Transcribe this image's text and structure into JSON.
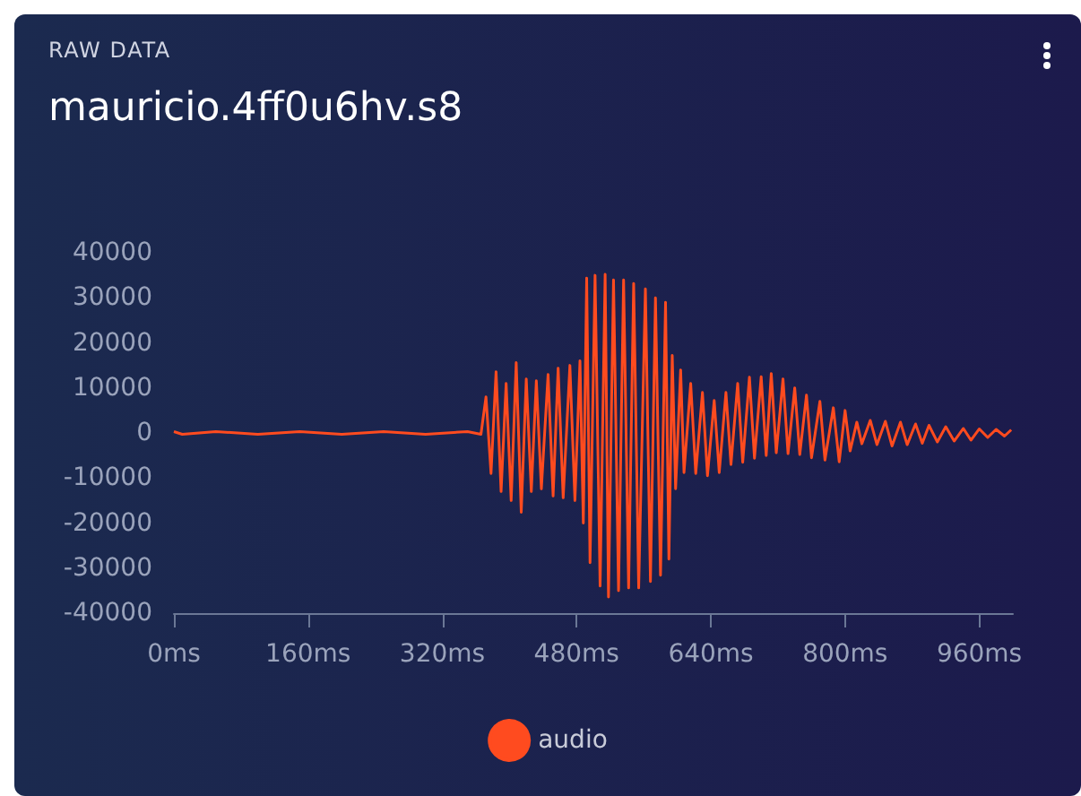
{
  "chart_data": {
    "type": "line",
    "subtitle": "RAW DATA",
    "title": "mauricio.4ff0u6hv.s8",
    "x": [
      0,
      10,
      50,
      100,
      150,
      200,
      250,
      300,
      350,
      366,
      372,
      378,
      384,
      390,
      396,
      402,
      408,
      414,
      420,
      426,
      432,
      438,
      446,
      452,
      458,
      464,
      472,
      478,
      484,
      488,
      492,
      496,
      502,
      508,
      514,
      518,
      524,
      530,
      536,
      542,
      548,
      554,
      562,
      568,
      574,
      580,
      586,
      590,
      594,
      598,
      604,
      608,
      616,
      622,
      630,
      636,
      644,
      650,
      658,
      664,
      672,
      678,
      686,
      692,
      700,
      706,
      712,
      718,
      726,
      732,
      740,
      746,
      754,
      760,
      770,
      776,
      786,
      793,
      800,
      806,
      814,
      820,
      830,
      838,
      848,
      856,
      866,
      874,
      884,
      892,
      900,
      910,
      920,
      930,
      941,
      950,
      960,
      970,
      980,
      990,
      998
    ],
    "series": [
      {
        "name": "audio",
        "color": "#ff4b1f",
        "values": [
          300,
          -300,
          300,
          -300,
          300,
          -300,
          300,
          -300,
          300,
          -300,
          8000,
          -9000,
          13600,
          -13000,
          11000,
          -15000,
          15600,
          -17600,
          12000,
          -13000,
          11600,
          -12400,
          13000,
          -14000,
          14400,
          -14400,
          15000,
          -15000,
          16000,
          -20000,
          34400,
          -28800,
          35000,
          -34000,
          35200,
          -36400,
          34000,
          -35000,
          34000,
          -34400,
          33200,
          -34400,
          32000,
          -33000,
          30000,
          -31600,
          29000,
          -28000,
          17200,
          -12400,
          14000,
          -8800,
          11000,
          -9000,
          9000,
          -9500,
          7200,
          -8800,
          9000,
          -7000,
          11000,
          -6500,
          12400,
          -5600,
          12500,
          -5000,
          13200,
          -4400,
          12000,
          -4600,
          10000,
          -4800,
          8400,
          -5500,
          7000,
          -6000,
          5600,
          -6400,
          5000,
          -4000,
          2400,
          -2400,
          2800,
          -2600,
          2600,
          -2900,
          2400,
          -2600,
          2000,
          -2300,
          1700,
          -2000,
          1400,
          -1800,
          1000,
          -1600,
          900,
          -1000,
          800,
          -700,
          700
        ]
      }
    ],
    "xlim": [
      0,
      1000
    ],
    "xticks": [
      {
        "value": 0,
        "label": "0ms"
      },
      {
        "value": 160,
        "label": "160ms"
      },
      {
        "value": 320,
        "label": "320ms"
      },
      {
        "value": 480,
        "label": "480ms"
      },
      {
        "value": 640,
        "label": "640ms"
      },
      {
        "value": 800,
        "label": "800ms"
      },
      {
        "value": 960,
        "label": "960ms"
      }
    ],
    "ylim": [
      -40000,
      40000
    ],
    "yticks": [
      -40000,
      -30000,
      -20000,
      -10000,
      0,
      10000,
      20000,
      30000,
      40000
    ],
    "grid": false,
    "legend": "bottom",
    "marker": "none",
    "line_style": "solid"
  }
}
